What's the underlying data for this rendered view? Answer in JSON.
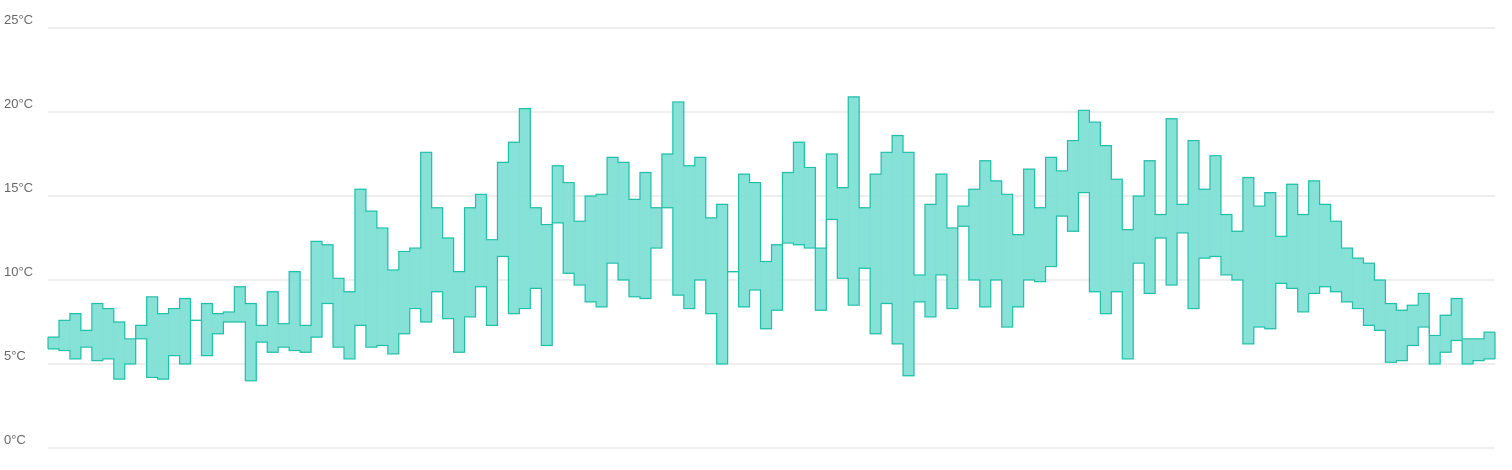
{
  "chart_data": {
    "type": "range-step-area",
    "color": "#7fdfd4",
    "line_color": "#1fbfa8",
    "grid": true,
    "ylim": [
      0,
      25
    ],
    "yticks": [
      {
        "value": 0,
        "label": "0°C"
      },
      {
        "value": 5,
        "label": "5°C"
      },
      {
        "value": 10,
        "label": "10°C"
      },
      {
        "value": 15,
        "label": "15°C"
      },
      {
        "value": 20,
        "label": "20°C"
      },
      {
        "value": 25,
        "label": "25°C"
      }
    ],
    "high": [
      6.6,
      7.6,
      8.0,
      7.0,
      8.6,
      8.3,
      7.5,
      6.5,
      7.3,
      9.0,
      8.0,
      8.3,
      8.9,
      7.6,
      8.6,
      8.0,
      8.1,
      9.6,
      8.6,
      7.3,
      9.3,
      7.4,
      10.5,
      7.3,
      12.3,
      12.1,
      10.1,
      9.3,
      15.4,
      14.1,
      13.1,
      10.6,
      11.7,
      11.9,
      17.6,
      14.3,
      12.5,
      10.5,
      14.3,
      15.1,
      12.4,
      17.0,
      18.2,
      20.2,
      14.3,
      13.3,
      16.8,
      15.8,
      13.5,
      15.0,
      15.1,
      17.3,
      17.0,
      14.8,
      16.4,
      14.3,
      17.5,
      20.6,
      16.8,
      17.3,
      13.7,
      14.5,
      10.5,
      16.3,
      15.8,
      11.1,
      12.1,
      16.4,
      18.2,
      16.7,
      11.9,
      17.5,
      15.5,
      20.9,
      14.3,
      16.3,
      17.6,
      18.6,
      17.6,
      10.3,
      14.5,
      16.3,
      13.1,
      14.4,
      15.4,
      17.1,
      15.9,
      15.1,
      12.7,
      16.6,
      14.3,
      17.3,
      16.5,
      18.3,
      20.1,
      19.4,
      18.0,
      16.0,
      13.0,
      15.0,
      17.1,
      13.9,
      19.6,
      14.5,
      18.3,
      15.4,
      17.4,
      13.9,
      12.9,
      16.1,
      14.4,
      15.2,
      12.6,
      15.7,
      13.9,
      15.9,
      14.5,
      13.5,
      11.9,
      11.3,
      11.0,
      10.0,
      8.6,
      8.2,
      8.5,
      9.2,
      6.7,
      7.9,
      8.9,
      6.5,
      6.5,
      6.9
    ],
    "low": [
      5.9,
      5.8,
      5.3,
      6.0,
      5.2,
      5.3,
      4.1,
      5.0,
      6.5,
      4.2,
      4.1,
      5.5,
      5.0,
      7.6,
      5.5,
      6.8,
      7.5,
      7.5,
      4.0,
      6.3,
      5.7,
      6.0,
      5.8,
      5.7,
      6.6,
      8.6,
      6.0,
      5.3,
      7.3,
      6.0,
      6.1,
      5.6,
      6.8,
      8.3,
      7.5,
      9.3,
      7.7,
      5.7,
      7.8,
      9.6,
      7.3,
      11.4,
      8.0,
      8.3,
      9.5,
      6.1,
      13.4,
      10.4,
      9.7,
      8.7,
      8.4,
      11.0,
      10.0,
      9.0,
      8.9,
      11.9,
      14.3,
      9.1,
      8.3,
      10.0,
      8.0,
      5.0,
      10.5,
      8.4,
      9.4,
      7.1,
      8.2,
      12.2,
      12.1,
      11.9,
      8.2,
      13.6,
      10.1,
      8.5,
      10.7,
      6.8,
      8.6,
      6.2,
      4.3,
      8.7,
      7.8,
      10.3,
      8.3,
      13.2,
      10.0,
      8.4,
      10.0,
      7.2,
      8.4,
      10.0,
      9.9,
      10.8,
      13.8,
      12.9,
      15.2,
      9.3,
      8.0,
      9.3,
      5.3,
      11.0,
      9.2,
      12.5,
      9.7,
      12.8,
      8.3,
      11.3,
      11.4,
      10.3,
      10.0,
      6.2,
      7.2,
      7.1,
      9.8,
      9.5,
      8.1,
      9.2,
      9.6,
      9.3,
      8.7,
      8.3,
      7.3,
      7.0,
      5.1,
      5.2,
      6.1,
      7.2,
      5.0,
      5.7,
      6.4,
      5.0,
      5.2,
      5.3
    ]
  }
}
